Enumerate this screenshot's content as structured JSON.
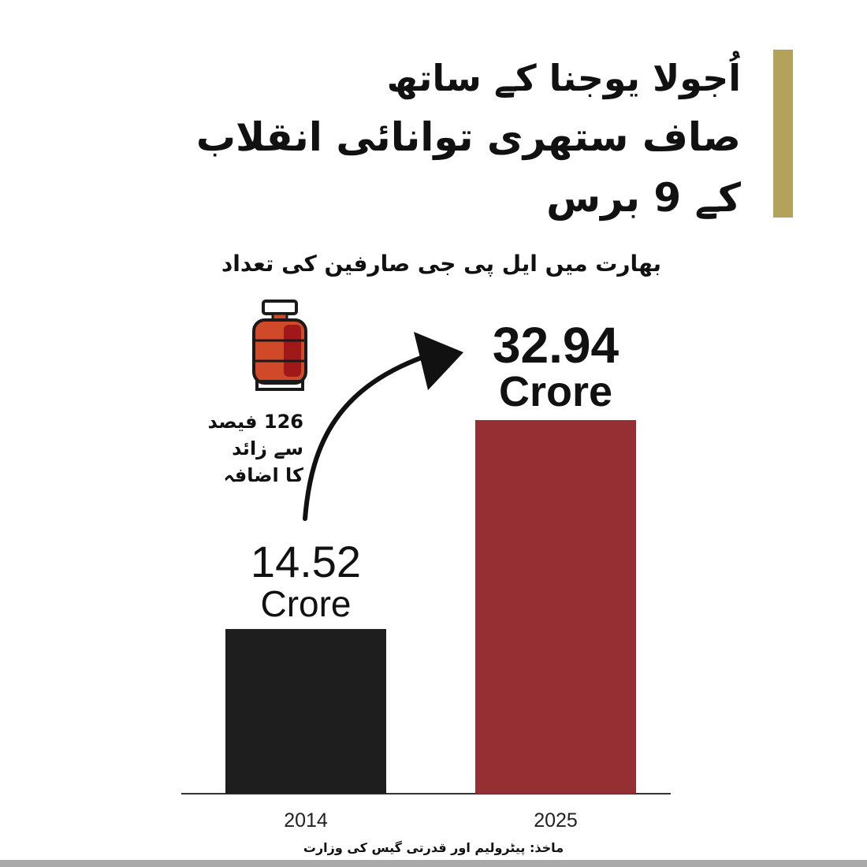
{
  "header": {
    "title_lines": [
      "اُجولا یوجنا کے ساتھ",
      "صاف ستھری توانائی انقلاب",
      "کے 9 برس"
    ],
    "accent_color": "#b5a25a"
  },
  "chart_data": {
    "type": "bar",
    "title": "بھارت میں ایل پی جی صارفین کی تعداد",
    "categories": [
      "2014",
      "2025"
    ],
    "values": [
      14.52,
      32.94
    ],
    "value_labels": [
      "14.52",
      "32.94"
    ],
    "unit_label": "Crore",
    "colors": [
      "#1e1e1e",
      "#962f33"
    ],
    "ylim": [
      0,
      40
    ],
    "grid": false
  },
  "annotation": {
    "lines": [
      "126 فیصد",
      "سے زائد",
      "کا اضافہ"
    ],
    "icon": "gas-cylinder-icon",
    "icon_color": "#d04a2a"
  },
  "footer": {
    "source": "ماخذ: پیٹرولیم اور قدرتی گیس کی وزارت"
  }
}
